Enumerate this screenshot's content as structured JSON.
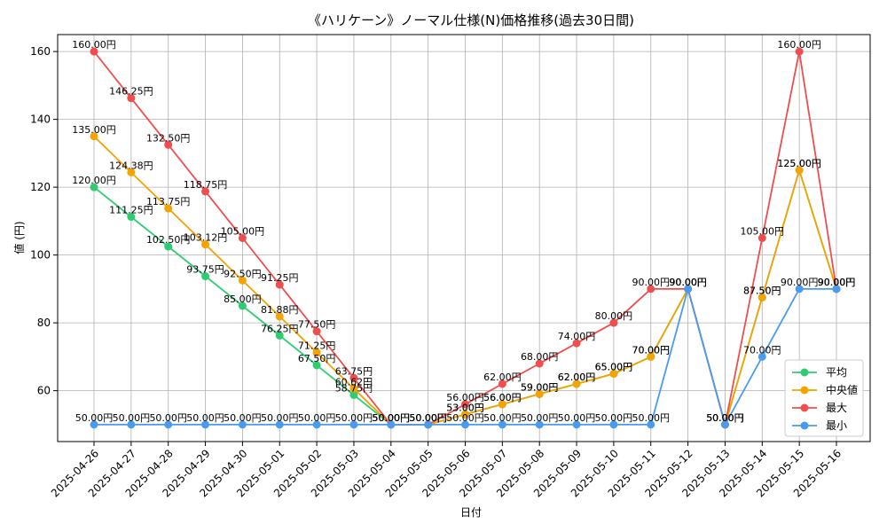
{
  "chart_data": {
    "type": "line",
    "title": "《ハリケーン》ノーマル仕様(N)価格推移(過去30日間)",
    "xlabel": "日付",
    "ylabel": "値 (円)",
    "unit_suffix": "円",
    "ylim": [
      45,
      165
    ],
    "yticks": [
      60,
      80,
      100,
      120,
      140,
      160
    ],
    "grid": true,
    "legend_position": "bottom-right",
    "categories": [
      "2025-04-26",
      "2025-04-27",
      "2025-04-28",
      "2025-04-29",
      "2025-04-30",
      "2025-05-01",
      "2025-05-02",
      "2025-05-03",
      "2025-05-04",
      "2025-05-05",
      "2025-05-06",
      "2025-05-07",
      "2025-05-08",
      "2025-05-09",
      "2025-05-10",
      "2025-05-11",
      "2025-05-12",
      "2025-05-13",
      "2025-05-14",
      "2025-05-15",
      "2025-05-16"
    ],
    "series": [
      {
        "name": "平均",
        "color": "#2ecc71",
        "values": [
          120.0,
          111.25,
          102.5,
          93.75,
          85.0,
          76.25,
          67.5,
          58.75,
          50.0,
          50.0,
          53.0,
          56.0,
          59.0,
          62.0,
          65.0,
          70.0,
          90.0,
          50.0,
          87.5,
          125.0,
          90.0
        ]
      },
      {
        "name": "中央値",
        "color": "#f5a300",
        "values": [
          135.0,
          124.38,
          113.75,
          103.12,
          92.5,
          81.88,
          71.25,
          60.62,
          50.0,
          50.0,
          53.0,
          56.0,
          59.0,
          62.0,
          65.0,
          70.0,
          90.0,
          50.0,
          87.5,
          125.0,
          90.0
        ]
      },
      {
        "name": "最大",
        "color": "#f04e4e",
        "values": [
          160.0,
          146.25,
          132.5,
          118.75,
          105.0,
          91.25,
          77.5,
          63.75,
          50.0,
          50.0,
          56.0,
          62.0,
          68.0,
          74.0,
          80.0,
          90.0,
          90.0,
          50.0,
          105.0,
          160.0,
          90.0
        ]
      },
      {
        "name": "最小",
        "color": "#4a9bf0",
        "values": [
          50.0,
          50.0,
          50.0,
          50.0,
          50.0,
          50.0,
          50.0,
          50.0,
          50.0,
          50.0,
          50.0,
          50.0,
          50.0,
          50.0,
          50.0,
          50.0,
          90.0,
          50.0,
          70.0,
          90.0,
          90.0
        ]
      }
    ]
  }
}
